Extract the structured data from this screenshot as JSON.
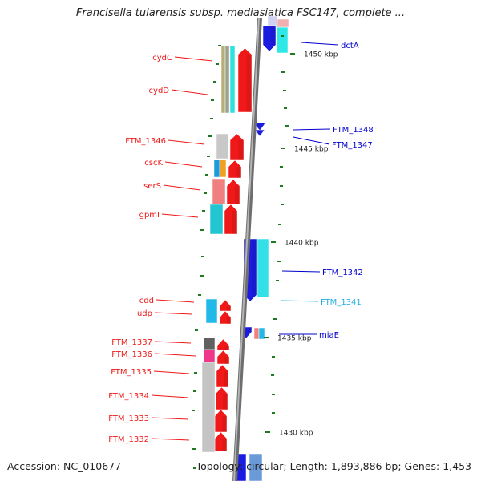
{
  "title": "Francisella tularensis subsp. mediasiatica FSC147, complete ...",
  "footer": {
    "accession": "Accession: NC_010677",
    "summary": "Topology: circular; Length: 1,893,886 bp; Genes: 1,453"
  },
  "axis": {
    "unit": "kbp",
    "ticks": [
      {
        "kbp": 1450,
        "label": "1450 kbp"
      },
      {
        "kbp": 1445,
        "label": "1445 kbp"
      },
      {
        "kbp": 1440,
        "label": "1440 kbp"
      },
      {
        "kbp": 1435,
        "label": "1435 kbp"
      },
      {
        "kbp": 1430,
        "label": "1430 kbp"
      }
    ]
  },
  "colors": {
    "backbone": "#8f8f8f",
    "tick_marks": "#1f7a1f",
    "forward_label": "#cc0000",
    "reverse_label": "#0000cc",
    "reverse_label_light": "#20b0e0",
    "cds_forward": "#f01818",
    "cds_reverse": "#1c1ce0",
    "cds_reverse_light": "#8fd0f0"
  },
  "genes": {
    "left": [
      {
        "name": "cydC",
        "color": "#f01818"
      },
      {
        "name": "cydD",
        "color": "#f01818"
      },
      {
        "name": "FTM_1346",
        "color": "#f01818"
      },
      {
        "name": "cscK",
        "color": "#f01818"
      },
      {
        "name": "serS",
        "color": "#f01818"
      },
      {
        "name": "gpmI",
        "color": "#f01818"
      },
      {
        "name": "cdd",
        "color": "#f01818"
      },
      {
        "name": "udp",
        "color": "#f01818"
      },
      {
        "name": "FTM_1337",
        "color": "#f01818"
      },
      {
        "name": "FTM_1336",
        "color": "#f01818"
      },
      {
        "name": "FTM_1335",
        "color": "#f01818"
      },
      {
        "name": "FTM_1334",
        "color": "#f01818"
      },
      {
        "name": "FTM_1333",
        "color": "#f01818"
      },
      {
        "name": "FTM_1332",
        "color": "#f01818"
      }
    ],
    "right": [
      {
        "name": "dctA",
        "color": "#0000cc"
      },
      {
        "name": "FTM_1348",
        "color": "#0000cc"
      },
      {
        "name": "FTM_1347",
        "color": "#0000cc"
      },
      {
        "name": "FTM_1342",
        "color": "#0000cc"
      },
      {
        "name": "FTM_1341",
        "color": "#20b0e0"
      },
      {
        "name": "miaE",
        "color": "#0000cc"
      }
    ]
  }
}
